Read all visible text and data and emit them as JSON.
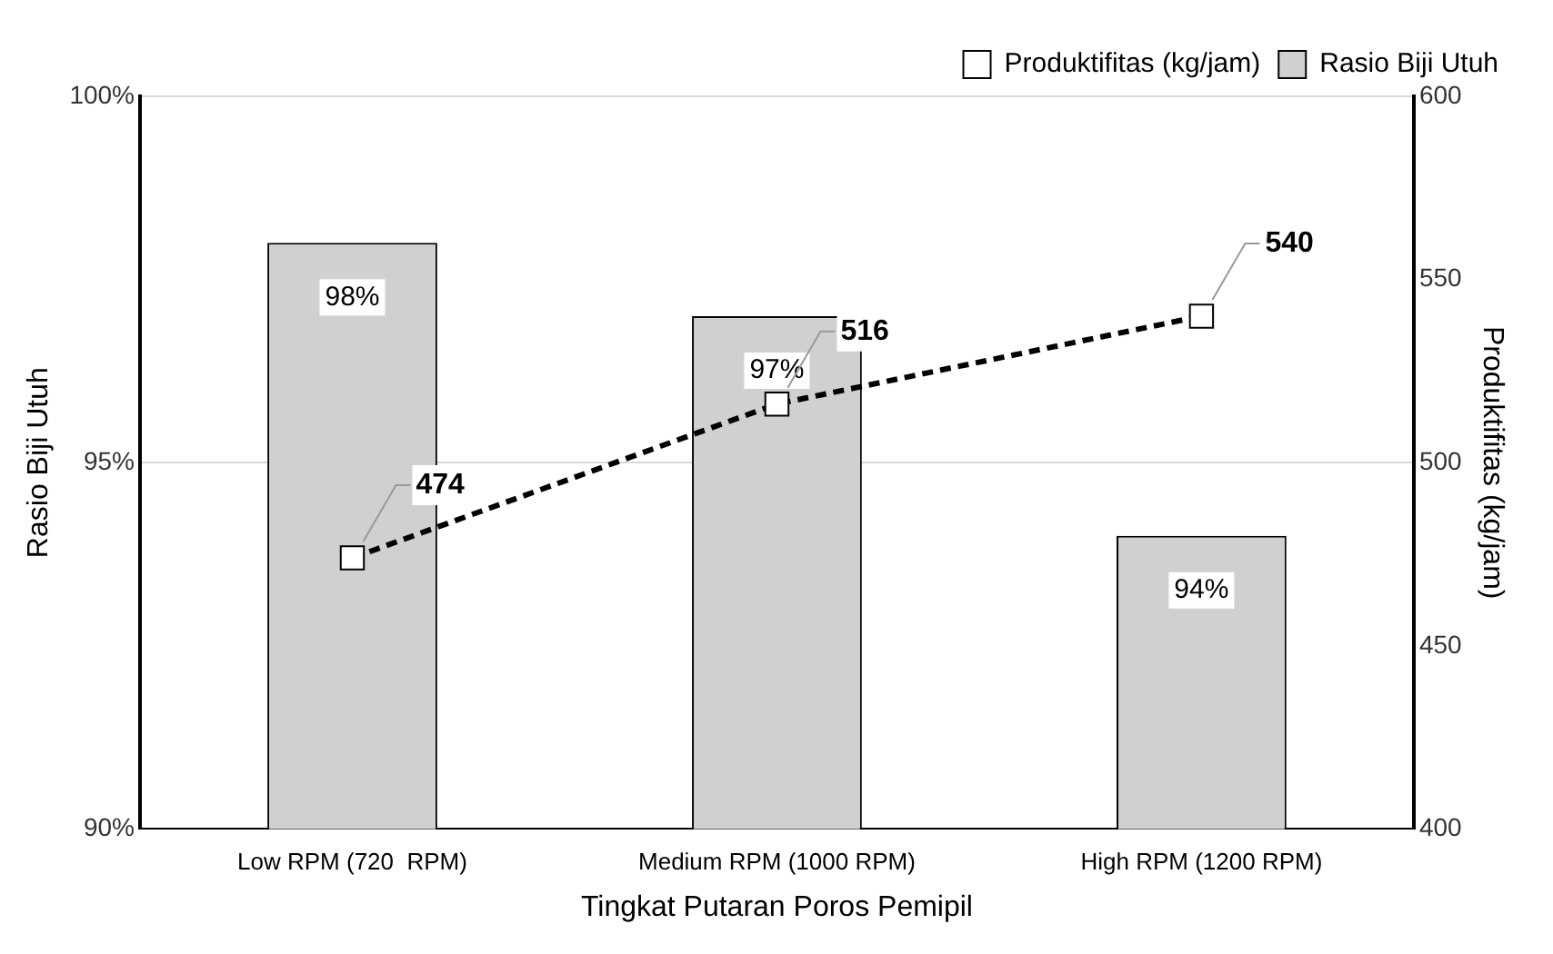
{
  "chart_data": {
    "type": "bar",
    "xlabel": "Tingkat Putaran Poros Pemipil",
    "ylabel": "Rasio Biji Utuh",
    "y2label": "Produktifitas (kg/jam)",
    "categories": [
      "Low RPM (720  RPM)",
      "Medium RPM (1000 RPM)",
      "High RPM (1200 RPM)"
    ],
    "series": [
      {
        "name": "Rasio Biji Utuh",
        "color": "#d0d0d0",
        "values": [
          98,
          97,
          94
        ],
        "value_labels": [
          "98%",
          "97%",
          "94%"
        ]
      },
      {
        "name": "Produktifitas (kg/jam)",
        "type": "line",
        "axis": "y2",
        "color": "#000000",
        "marker": "square",
        "line_style": "dashed",
        "values": [
          474,
          516,
          540
        ],
        "value_labels": [
          "474",
          "516",
          "540"
        ]
      }
    ],
    "ylim": [
      90,
      100
    ],
    "yticks": [
      {
        "value": 90,
        "label": "90%"
      },
      {
        "value": 95,
        "label": "95%"
      },
      {
        "value": 100,
        "label": "100%"
      }
    ],
    "y2lim": [
      400,
      600
    ],
    "y2ticks": [
      400,
      450,
      500,
      550,
      600
    ],
    "grid": "y",
    "legend": "top right"
  }
}
